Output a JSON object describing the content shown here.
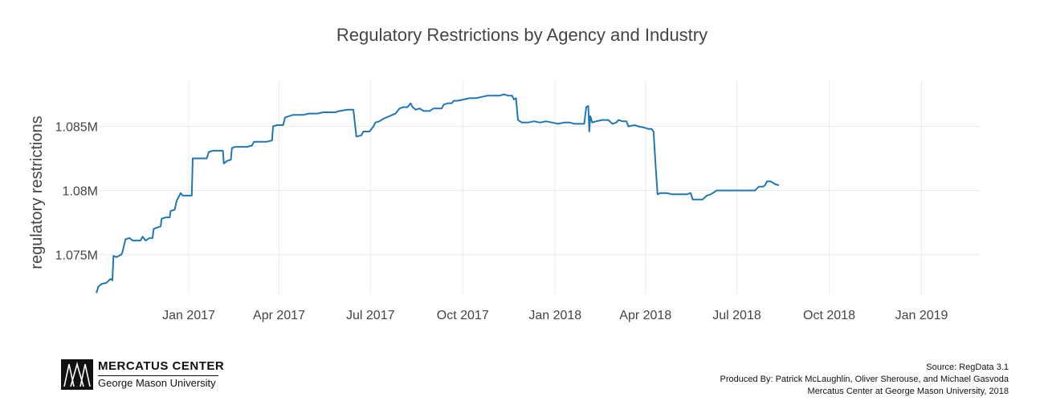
{
  "chart_data": {
    "type": "line",
    "title": "Regulatory Restrictions by Agency and Industry",
    "xlabel": "",
    "ylabel": "regulatory restrictions",
    "x_tick_labels": [
      "Jan 2017",
      "Apr 2017",
      "Jul 2017",
      "Oct 2017",
      "Jan 2018",
      "Apr 2018",
      "Jul 2018",
      "Oct 2018",
      "Jan 2019"
    ],
    "x_tick_days": [
      92,
      182,
      273,
      365,
      457,
      547,
      638,
      730,
      822
    ],
    "x_range_days": [
      0,
      880
    ],
    "y_ticks": [
      1075000,
      1080000,
      1085000
    ],
    "y_tick_labels": [
      "1.075M",
      "1.08M",
      "1.085M"
    ],
    "ylim": [
      1071900,
      1088600
    ],
    "grid": true,
    "series": [
      {
        "name": "regulatory restrictions",
        "color": "#1f77b4",
        "points": [
          [
            0,
            1072000
          ],
          [
            2,
            1072500
          ],
          [
            5,
            1072700
          ],
          [
            10,
            1072800
          ],
          [
            14,
            1073100
          ],
          [
            16,
            1073000
          ],
          [
            17,
            1074900
          ],
          [
            20,
            1074800
          ],
          [
            25,
            1075000
          ],
          [
            26,
            1075200
          ],
          [
            29,
            1076200
          ],
          [
            33,
            1076300
          ],
          [
            36,
            1076100
          ],
          [
            40,
            1076100
          ],
          [
            44,
            1076100
          ],
          [
            46,
            1076400
          ],
          [
            49,
            1076100
          ],
          [
            53,
            1076300
          ],
          [
            56,
            1076300
          ],
          [
            57,
            1077000
          ],
          [
            60,
            1077100
          ],
          [
            64,
            1077200
          ],
          [
            65,
            1077800
          ],
          [
            69,
            1077900
          ],
          [
            73,
            1077900
          ],
          [
            74,
            1078400
          ],
          [
            78,
            1078500
          ],
          [
            80,
            1079200
          ],
          [
            82,
            1079500
          ],
          [
            84,
            1079800
          ],
          [
            86,
            1079600
          ],
          [
            90,
            1079600
          ],
          [
            95,
            1079600
          ],
          [
            96,
            1082500
          ],
          [
            100,
            1082500
          ],
          [
            106,
            1082500
          ],
          [
            110,
            1082500
          ],
          [
            112,
            1083000
          ],
          [
            116,
            1083100
          ],
          [
            120,
            1083100
          ],
          [
            124,
            1083100
          ],
          [
            126,
            1083100
          ],
          [
            127,
            1082100
          ],
          [
            130,
            1082300
          ],
          [
            134,
            1082400
          ],
          [
            135,
            1083300
          ],
          [
            138,
            1083400
          ],
          [
            142,
            1083400
          ],
          [
            146,
            1083400
          ],
          [
            150,
            1083400
          ],
          [
            155,
            1083500
          ],
          [
            157,
            1083800
          ],
          [
            162,
            1083800
          ],
          [
            166,
            1083800
          ],
          [
            170,
            1083800
          ],
          [
            175,
            1083900
          ],
          [
            176,
            1085000
          ],
          [
            180,
            1085100
          ],
          [
            186,
            1085100
          ],
          [
            188,
            1085700
          ],
          [
            192,
            1085800
          ],
          [
            196,
            1085900
          ],
          [
            200,
            1085900
          ],
          [
            206,
            1085900
          ],
          [
            212,
            1086000
          ],
          [
            216,
            1086000
          ],
          [
            220,
            1086000
          ],
          [
            226,
            1086100
          ],
          [
            232,
            1086100
          ],
          [
            238,
            1086100
          ],
          [
            242,
            1086200
          ],
          [
            250,
            1086300
          ],
          [
            256,
            1086300
          ],
          [
            259,
            1084200
          ],
          [
            264,
            1084300
          ],
          [
            266,
            1084600
          ],
          [
            272,
            1084600
          ],
          [
            276,
            1085000
          ],
          [
            278,
            1085300
          ],
          [
            282,
            1085400
          ],
          [
            286,
            1085600
          ],
          [
            292,
            1085800
          ],
          [
            298,
            1086000
          ],
          [
            302,
            1086400
          ],
          [
            306,
            1086500
          ],
          [
            310,
            1086500
          ],
          [
            313,
            1086800
          ],
          [
            315,
            1086500
          ],
          [
            318,
            1086300
          ],
          [
            322,
            1086400
          ],
          [
            326,
            1086200
          ],
          [
            332,
            1086200
          ],
          [
            336,
            1086400
          ],
          [
            340,
            1086400
          ],
          [
            344,
            1086400
          ],
          [
            346,
            1086700
          ],
          [
            350,
            1086800
          ],
          [
            354,
            1086800
          ],
          [
            356,
            1087000
          ],
          [
            360,
            1087000
          ],
          [
            366,
            1087100
          ],
          [
            372,
            1087200
          ],
          [
            378,
            1087200
          ],
          [
            384,
            1087300
          ],
          [
            390,
            1087400
          ],
          [
            396,
            1087400
          ],
          [
            402,
            1087400
          ],
          [
            406,
            1087500
          ],
          [
            410,
            1087400
          ],
          [
            414,
            1087400
          ],
          [
            416,
            1087100
          ],
          [
            418,
            1087200
          ],
          [
            420,
            1085500
          ],
          [
            424,
            1085300
          ],
          [
            430,
            1085300
          ],
          [
            436,
            1085400
          ],
          [
            442,
            1085300
          ],
          [
            448,
            1085400
          ],
          [
            454,
            1085300
          ],
          [
            460,
            1085200
          ],
          [
            466,
            1085300
          ],
          [
            472,
            1085300
          ],
          [
            476,
            1085200
          ],
          [
            482,
            1085200
          ],
          [
            486,
            1085200
          ],
          [
            488,
            1086500
          ],
          [
            490,
            1086600
          ],
          [
            491,
            1084600
          ],
          [
            492,
            1085800
          ],
          [
            494,
            1085300
          ],
          [
            498,
            1085400
          ],
          [
            504,
            1085500
          ],
          [
            510,
            1085500
          ],
          [
            514,
            1085200
          ],
          [
            518,
            1085300
          ],
          [
            520,
            1085500
          ],
          [
            524,
            1085400
          ],
          [
            528,
            1085400
          ],
          [
            530,
            1085000
          ],
          [
            536,
            1085100
          ],
          [
            540,
            1085000
          ],
          [
            546,
            1084900
          ],
          [
            550,
            1084800
          ],
          [
            553,
            1084800
          ],
          [
            555,
            1084600
          ],
          [
            557,
            1082000
          ],
          [
            559,
            1079700
          ],
          [
            562,
            1079800
          ],
          [
            568,
            1079800
          ],
          [
            574,
            1079700
          ],
          [
            580,
            1079700
          ],
          [
            588,
            1079700
          ],
          [
            592,
            1079800
          ],
          [
            594,
            1079300
          ],
          [
            598,
            1079300
          ],
          [
            604,
            1079300
          ],
          [
            608,
            1079600
          ],
          [
            612,
            1079700
          ],
          [
            618,
            1080000
          ],
          [
            624,
            1080000
          ],
          [
            630,
            1080000
          ],
          [
            640,
            1080000
          ],
          [
            650,
            1080000
          ],
          [
            656,
            1080000
          ],
          [
            660,
            1080300
          ],
          [
            664,
            1080300
          ],
          [
            666,
            1080400
          ],
          [
            668,
            1080700
          ],
          [
            672,
            1080700
          ],
          [
            676,
            1080500
          ],
          [
            680,
            1080400
          ]
        ]
      }
    ]
  },
  "footer": {
    "logo_name": "MERCATUS CENTER",
    "logo_subtitle": "George Mason University",
    "source": "Source: RegData 3.1",
    "produced_by": "Produced By: Patrick  McLaughlin, Oliver Sherouse, and Michael Gasvoda",
    "org_line": "Mercatus Center at George Mason University, 2018"
  }
}
